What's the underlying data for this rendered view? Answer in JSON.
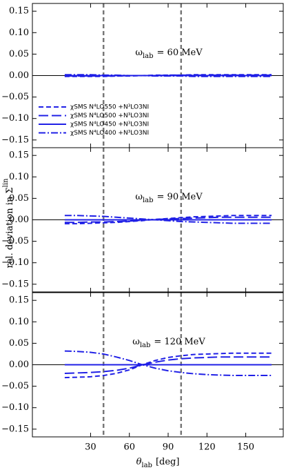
{
  "chart_data": [
    {
      "type": "line",
      "annotation": {
        "symbol": "ω",
        "subscript": "lab",
        "text": "= 60 MeV"
      },
      "x": [
        10,
        20,
        30,
        40,
        50,
        60,
        70,
        80,
        90,
        100,
        110,
        120,
        130,
        140,
        150,
        160,
        170
      ],
      "series": [
        {
          "name": "χSMS N⁴LO550 +N³LO3NI",
          "color": "#1f1fe6",
          "style": "dashed",
          "values": [
            -0.002,
            -0.002,
            -0.002,
            -0.002,
            -0.001,
            -0.001,
            0.0,
            0.001,
            0.001,
            0.001,
            0.002,
            0.002,
            0.002,
            0.002,
            0.002,
            0.002,
            0.002
          ]
        },
        {
          "name": "χSMS N⁴LO500 +N³LO3NI",
          "color": "#1f1fe6",
          "style": "long-dashed",
          "values": [
            -0.001,
            -0.001,
            -0.001,
            -0.001,
            -0.001,
            0.0,
            0.0,
            0.0,
            0.001,
            0.001,
            0.001,
            0.001,
            0.001,
            0.001,
            0.001,
            0.001,
            0.001
          ]
        },
        {
          "name": "χSMS N⁴LO450 +N³LO3NI",
          "color": "#1f1fe6",
          "style": "solid",
          "values": [
            0,
            0,
            0,
            0,
            0,
            0,
            0,
            0,
            0,
            0,
            0,
            0,
            0,
            0,
            0,
            0,
            0
          ]
        },
        {
          "name": "χSMS N⁴LO400 +N³LO3NI",
          "color": "#1f1fe6",
          "style": "dashdot",
          "values": [
            0.002,
            0.002,
            0.002,
            0.001,
            0.001,
            0.0,
            0.0,
            -0.001,
            -0.001,
            -0.001,
            -0.002,
            -0.002,
            -0.002,
            -0.002,
            -0.002,
            -0.002,
            -0.002
          ]
        }
      ],
      "legend": "left",
      "vlines": [
        40,
        100
      ],
      "hline": 0,
      "xlim": [
        -15,
        179
      ],
      "xticks": [
        30,
        60,
        90,
        120,
        150
      ],
      "ylim": [
        -0.168,
        0.168
      ],
      "yticks": [
        {
          "value": -0.15,
          "label": "−0.15"
        },
        {
          "value": -0.1,
          "label": "−0.10"
        },
        {
          "value": -0.05,
          "label": "−0.05"
        },
        {
          "value": 0,
          "label": "0.00"
        },
        0.05,
        {
          "value": 0.1,
          "label": "0.10"
        },
        0.15
      ]
    },
    {
      "type": "line",
      "annotation": {
        "symbol": "ω",
        "subscript": "lab",
        "text": "= 90 MeV"
      },
      "ylabel": {
        "text": "rel. deviation  in Σ",
        "superscript": "lin"
      },
      "x": [
        10,
        20,
        30,
        40,
        50,
        60,
        70,
        80,
        90,
        100,
        110,
        120,
        130,
        140,
        150,
        160,
        170
      ],
      "series": [
        {
          "color": "#1f1fe6",
          "style": "dashed",
          "values": [
            -0.009,
            -0.009,
            -0.008,
            -0.007,
            -0.006,
            -0.004,
            -0.002,
            0.001,
            0.003,
            0.005,
            0.007,
            0.008,
            0.009,
            0.01,
            0.01,
            0.01,
            0.01
          ]
        },
        {
          "color": "#1f1fe6",
          "style": "long-dashed",
          "values": [
            -0.006,
            -0.006,
            -0.005,
            -0.005,
            -0.004,
            -0.003,
            -0.001,
            0.001,
            0.002,
            0.003,
            0.004,
            0.005,
            0.006,
            0.006,
            0.006,
            0.006,
            0.006
          ]
        },
        {
          "color": "#1f1fe6",
          "style": "solid",
          "values": [
            0,
            0,
            0,
            0,
            0,
            0,
            0,
            0,
            0,
            0,
            0,
            0,
            0,
            0,
            0,
            0,
            0
          ]
        },
        {
          "color": "#1f1fe6",
          "style": "dashdot",
          "values": [
            0.01,
            0.01,
            0.009,
            0.008,
            0.006,
            0.004,
            0.002,
            0.0,
            -0.002,
            -0.004,
            -0.005,
            -0.006,
            -0.007,
            -0.008,
            -0.008,
            -0.008,
            -0.008
          ]
        }
      ],
      "vlines": [
        40,
        100
      ],
      "hline": 0,
      "xlim": [
        -15,
        179
      ],
      "xticks": [
        30,
        60,
        90,
        120,
        150
      ],
      "ylim": [
        -0.168,
        0.168
      ],
      "yticks": [
        {
          "value": -0.15,
          "label": "−0.15"
        },
        {
          "value": -0.1,
          "label": "−0.10"
        },
        {
          "value": -0.05,
          "label": "−0.05"
        },
        {
          "value": 0,
          "label": "0.00"
        },
        0.05,
        {
          "value": 0.1,
          "label": "0.10"
        },
        0.15
      ]
    },
    {
      "type": "line",
      "annotation": {
        "symbol": "ω",
        "subscript": "lab",
        "text": "= 120 MeV"
      },
      "xlabel": {
        "symbol": "θ",
        "subscript": "lab",
        "text": "[deg]"
      },
      "x": [
        10,
        20,
        30,
        40,
        50,
        60,
        70,
        80,
        90,
        100,
        110,
        120,
        130,
        140,
        150,
        160,
        170
      ],
      "series": [
        {
          "color": "#1f1fe6",
          "style": "dashed",
          "values": [
            -0.03,
            -0.029,
            -0.028,
            -0.025,
            -0.02,
            -0.012,
            0.0,
            0.01,
            0.017,
            0.021,
            0.024,
            0.025,
            0.026,
            0.027,
            0.027,
            0.027,
            0.027
          ]
        },
        {
          "color": "#1f1fe6",
          "style": "long-dashed",
          "values": [
            -0.02,
            -0.019,
            -0.018,
            -0.016,
            -0.013,
            -0.008,
            0.0,
            0.006,
            0.011,
            0.014,
            0.016,
            0.017,
            0.018,
            0.018,
            0.018,
            0.018,
            0.018
          ]
        },
        {
          "color": "#1f1fe6",
          "style": "solid",
          "values": [
            0,
            0,
            0,
            0,
            0,
            0,
            0,
            0,
            0,
            0,
            0,
            0,
            0,
            0,
            0,
            0,
            0
          ]
        },
        {
          "color": "#1f1fe6",
          "style": "dashdot",
          "values": [
            0.032,
            0.031,
            0.029,
            0.025,
            0.018,
            0.01,
            0.0,
            -0.008,
            -0.014,
            -0.018,
            -0.021,
            -0.023,
            -0.024,
            -0.025,
            -0.025,
            -0.025,
            -0.025
          ]
        }
      ],
      "vlines": [
        40,
        100
      ],
      "hline": 0,
      "xlim": [
        -15,
        179
      ],
      "xticks": [
        30,
        60,
        90,
        120,
        150
      ],
      "ylim": [
        -0.168,
        0.168
      ],
      "yticks": [
        {
          "value": -0.15,
          "label": "−0.15"
        },
        {
          "value": -0.1,
          "label": "−0.10"
        },
        {
          "value": -0.05,
          "label": "−0.05"
        },
        {
          "value": 0,
          "label": "0.00"
        },
        0.05,
        {
          "value": 0.1,
          "label": "0.10"
        },
        0.15
      ]
    }
  ]
}
